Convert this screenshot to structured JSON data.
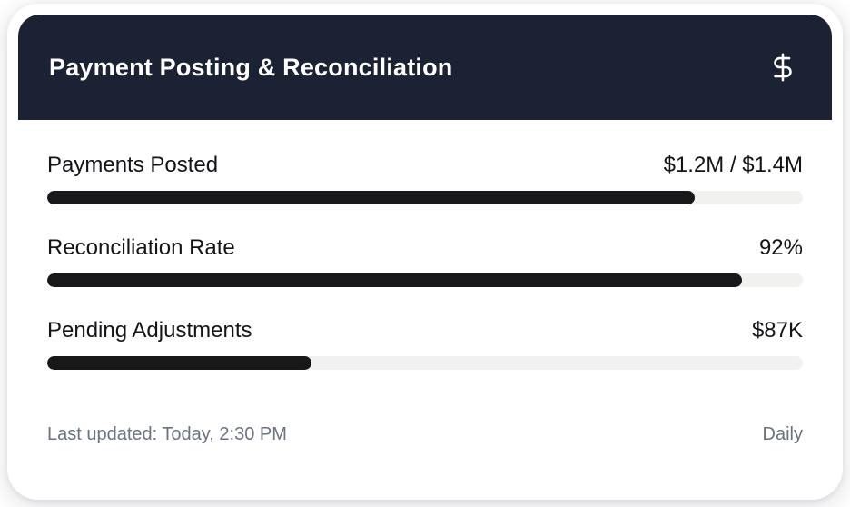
{
  "card": {
    "header": {
      "title": "Payment Posting & Reconciliation",
      "icon": "dollar-sign-icon"
    },
    "metrics": [
      {
        "label": "Payments Posted",
        "value": "$1.2M / $1.4M",
        "progress_pct": 85.7
      },
      {
        "label": "Reconciliation Rate",
        "value": "92%",
        "progress_pct": 92
      },
      {
        "label": "Pending Adjustments",
        "value": "$87K",
        "progress_pct": 35
      }
    ],
    "footer": {
      "last_updated": "Last updated: Today, 2:30 PM",
      "frequency": "Daily"
    }
  },
  "colors": {
    "header_bg": "#1a2233",
    "bar_fill": "#18181b",
    "bar_track": "#f1f1f0",
    "text_dark": "#131417",
    "text_muted": "#6b7280",
    "card_bg": "#ffffff"
  }
}
